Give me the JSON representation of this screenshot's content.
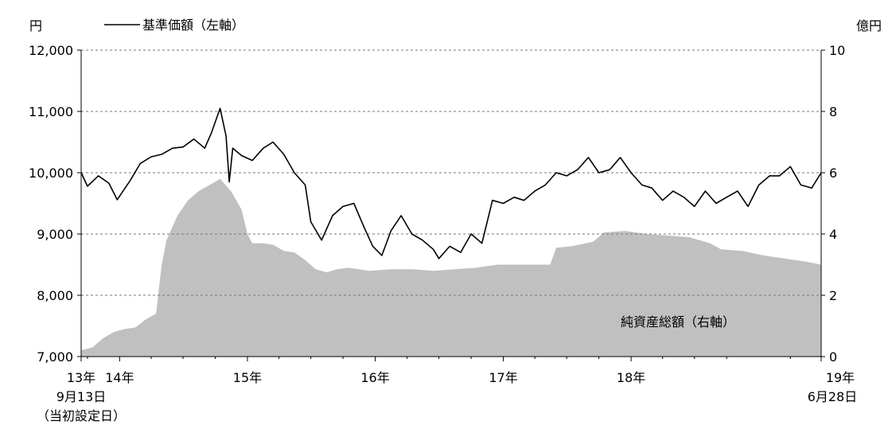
{
  "chart_data": {
    "type": "line+area",
    "left_unit": "円",
    "right_unit": "億円",
    "legend_price": "基準価額（左軸）",
    "area_label": "純資産総額（右軸）",
    "left_axis": {
      "ylim": [
        7000,
        12000
      ],
      "ticks": [
        "12,000",
        "11,000",
        "10,000",
        "9,000",
        "8,000",
        "7,000"
      ],
      "tick_values": [
        12000,
        11000,
        10000,
        9000,
        8000,
        7000
      ]
    },
    "right_axis": {
      "ylim": [
        0,
        10
      ],
      "ticks": [
        "10",
        "8",
        "6",
        "4",
        "2",
        "0"
      ],
      "tick_values": [
        10,
        8,
        6,
        4,
        2,
        0
      ]
    },
    "x_axis": {
      "xlim": [
        "2013-09-13",
        "2019-06-28"
      ],
      "year_ticks": [
        {
          "date": "2014-01-01",
          "label": "14年"
        },
        {
          "date": "2015-01-01",
          "label": "15年"
        },
        {
          "date": "2016-01-01",
          "label": "16年"
        },
        {
          "date": "2017-01-01",
          "label": "17年"
        },
        {
          "date": "2018-01-01",
          "label": "18年"
        }
      ],
      "start_label": [
        "13年",
        "9月13日",
        "（当初設定日）"
      ],
      "end_label": [
        "19年",
        "6月28日"
      ]
    },
    "grid": true,
    "series": [
      {
        "name": "基準価額（左軸）",
        "axis": "left",
        "style": "line",
        "color": "#000000",
        "points": [
          [
            "2013-09-13",
            10000
          ],
          [
            "2013-10-01",
            9780
          ],
          [
            "2013-11-01",
            9950
          ],
          [
            "2013-12-01",
            9830
          ],
          [
            "2013-12-25",
            9560
          ],
          [
            "2014-02-01",
            9880
          ],
          [
            "2014-03-01",
            10150
          ],
          [
            "2014-04-01",
            10260
          ],
          [
            "2014-05-01",
            10300
          ],
          [
            "2014-06-01",
            10400
          ],
          [
            "2014-07-01",
            10420
          ],
          [
            "2014-08-01",
            10550
          ],
          [
            "2014-09-01",
            10400
          ],
          [
            "2014-09-20",
            10650
          ],
          [
            "2014-10-15",
            11050
          ],
          [
            "2014-11-01",
            10600
          ],
          [
            "2014-11-10",
            9850
          ],
          [
            "2014-11-20",
            10400
          ],
          [
            "2014-12-15",
            10280
          ],
          [
            "2015-01-15",
            10200
          ],
          [
            "2015-02-15",
            10400
          ],
          [
            "2015-03-15",
            10500
          ],
          [
            "2015-04-15",
            10300
          ],
          [
            "2015-05-15",
            10000
          ],
          [
            "2015-06-15",
            9800
          ],
          [
            "2015-07-01",
            9200
          ],
          [
            "2015-08-01",
            8900
          ],
          [
            "2015-09-01",
            9300
          ],
          [
            "2015-10-01",
            9450
          ],
          [
            "2015-11-01",
            9500
          ],
          [
            "2015-12-01",
            9100
          ],
          [
            "2015-12-25",
            8800
          ],
          [
            "2016-01-20",
            8650
          ],
          [
            "2016-02-15",
            9050
          ],
          [
            "2016-03-15",
            9300
          ],
          [
            "2016-04-15",
            9000
          ],
          [
            "2016-05-15",
            8900
          ],
          [
            "2016-06-15",
            8750
          ],
          [
            "2016-07-01",
            8600
          ],
          [
            "2016-08-01",
            8800
          ],
          [
            "2016-09-01",
            8700
          ],
          [
            "2016-10-01",
            9000
          ],
          [
            "2016-11-01",
            8850
          ],
          [
            "2016-12-01",
            9550
          ],
          [
            "2017-01-01",
            9500
          ],
          [
            "2017-02-01",
            9600
          ],
          [
            "2017-03-01",
            9550
          ],
          [
            "2017-04-01",
            9700
          ],
          [
            "2017-05-01",
            9800
          ],
          [
            "2017-06-01",
            10000
          ],
          [
            "2017-07-01",
            9950
          ],
          [
            "2017-08-01",
            10050
          ],
          [
            "2017-09-01",
            10250
          ],
          [
            "2017-10-01",
            10000
          ],
          [
            "2017-11-01",
            10050
          ],
          [
            "2017-12-01",
            10250
          ],
          [
            "2018-01-01",
            10000
          ],
          [
            "2018-02-01",
            9800
          ],
          [
            "2018-03-01",
            9750
          ],
          [
            "2018-04-01",
            9550
          ],
          [
            "2018-05-01",
            9700
          ],
          [
            "2018-06-01",
            9600
          ],
          [
            "2018-07-01",
            9450
          ],
          [
            "2018-08-01",
            9700
          ],
          [
            "2018-09-01",
            9500
          ],
          [
            "2018-10-01",
            9600
          ],
          [
            "2018-11-01",
            9700
          ],
          [
            "2018-12-01",
            9450
          ],
          [
            "2019-01-01",
            9800
          ],
          [
            "2019-02-01",
            9950
          ],
          [
            "2019-03-01",
            9950
          ],
          [
            "2019-04-01",
            10100
          ],
          [
            "2019-05-01",
            9800
          ],
          [
            "2019-06-01",
            9750
          ],
          [
            "2019-06-28",
            10000
          ]
        ]
      },
      {
        "name": "純資産総額（右軸）",
        "axis": "right",
        "style": "area",
        "color": "#c0c0c0",
        "points": [
          [
            "2013-09-13",
            0.2
          ],
          [
            "2013-10-15",
            0.3
          ],
          [
            "2013-11-15",
            0.6
          ],
          [
            "2013-12-15",
            0.8
          ],
          [
            "2014-01-15",
            0.9
          ],
          [
            "2014-02-15",
            0.95
          ],
          [
            "2014-03-15",
            1.2
          ],
          [
            "2014-04-15",
            1.4
          ],
          [
            "2014-05-01",
            3.0
          ],
          [
            "2014-05-15",
            3.8
          ],
          [
            "2014-06-15",
            4.6
          ],
          [
            "2014-07-15",
            5.1
          ],
          [
            "2014-08-15",
            5.4
          ],
          [
            "2014-09-15",
            5.6
          ],
          [
            "2014-10-15",
            5.8
          ],
          [
            "2014-11-15",
            5.4
          ],
          [
            "2014-12-15",
            4.8
          ],
          [
            "2015-01-01",
            4.0
          ],
          [
            "2015-01-15",
            3.7
          ],
          [
            "2015-02-15",
            3.7
          ],
          [
            "2015-03-15",
            3.65
          ],
          [
            "2015-04-15",
            3.45
          ],
          [
            "2015-05-15",
            3.4
          ],
          [
            "2015-06-15",
            3.15
          ],
          [
            "2015-07-15",
            2.85
          ],
          [
            "2015-08-15",
            2.75
          ],
          [
            "2015-09-15",
            2.85
          ],
          [
            "2015-10-15",
            2.9
          ],
          [
            "2015-11-15",
            2.85
          ],
          [
            "2015-12-15",
            2.8
          ],
          [
            "2016-02-15",
            2.85
          ],
          [
            "2016-04-15",
            2.85
          ],
          [
            "2016-06-15",
            2.8
          ],
          [
            "2016-08-15",
            2.85
          ],
          [
            "2016-10-15",
            2.9
          ],
          [
            "2016-12-15",
            3.0
          ],
          [
            "2017-03-15",
            3.0
          ],
          [
            "2017-05-15",
            3.0
          ],
          [
            "2017-06-01",
            3.55
          ],
          [
            "2017-07-15",
            3.6
          ],
          [
            "2017-09-15",
            3.75
          ],
          [
            "2017-10-15",
            4.05
          ],
          [
            "2017-12-15",
            4.1
          ],
          [
            "2018-02-15",
            4.0
          ],
          [
            "2018-04-15",
            3.95
          ],
          [
            "2018-06-15",
            3.9
          ],
          [
            "2018-08-15",
            3.7
          ],
          [
            "2018-09-15",
            3.5
          ],
          [
            "2018-11-15",
            3.45
          ],
          [
            "2019-01-15",
            3.3
          ],
          [
            "2019-03-15",
            3.2
          ],
          [
            "2019-05-15",
            3.1
          ],
          [
            "2019-06-28",
            3.0
          ]
        ]
      }
    ]
  }
}
